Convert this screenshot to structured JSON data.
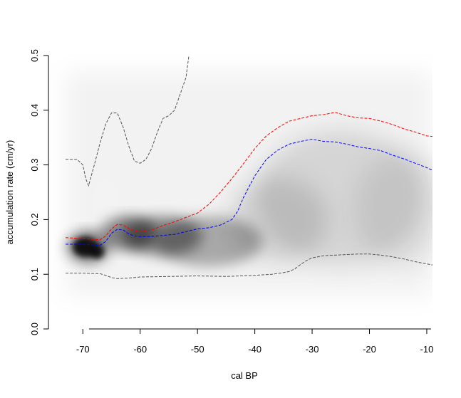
{
  "chart_data": {
    "type": "line",
    "title": "",
    "xlabel": "cal BP",
    "ylabel": "accumulation rate (cm/yr)",
    "xlim": [
      -76,
      -9
    ],
    "ylim": [
      0,
      0.5
    ],
    "x_ticks": [
      -70,
      -60,
      -50,
      -40,
      -30,
      -20,
      -10
    ],
    "x_tick_labels": [
      "-70",
      "-60",
      "-50",
      "-40",
      "-30",
      "-20",
      "-10"
    ],
    "y_ticks": [
      0,
      0.1,
      0.2,
      0.3,
      0.4,
      0.5
    ],
    "y_tick_labels": [
      "0.0",
      "0.1",
      "0.2",
      "0.3",
      "0.4",
      "0.5"
    ],
    "grid": false,
    "legend": "none",
    "background": "grey density shading (darkest near x -70 to -66, y 0.13 to 0.17)",
    "series": [
      {
        "color": "#ff0000",
        "dash": "dashed",
        "role": "mean",
        "x": [
          -73,
          -70,
          -67,
          -66,
          -65,
          -64,
          -63,
          -62,
          -61,
          -60,
          -58,
          -56,
          -54,
          -52,
          -50,
          -48,
          -46,
          -44,
          -42,
          -40,
          -38,
          -36,
          -34,
          -32,
          -30,
          -28,
          -26,
          -24,
          -22,
          -20,
          -18,
          -16,
          -14,
          -12,
          -10,
          -9
        ],
        "y": [
          0.167,
          0.165,
          0.163,
          0.17,
          0.183,
          0.191,
          0.19,
          0.184,
          0.179,
          0.178,
          0.181,
          0.189,
          0.196,
          0.204,
          0.212,
          0.228,
          0.25,
          0.275,
          0.302,
          0.33,
          0.353,
          0.368,
          0.38,
          0.385,
          0.39,
          0.392,
          0.396,
          0.39,
          0.386,
          0.385,
          0.38,
          0.374,
          0.366,
          0.36,
          0.353,
          0.352
        ]
      },
      {
        "color": "#0000ff",
        "dash": "dashed",
        "role": "median",
        "x": [
          -73,
          -70,
          -67,
          -66,
          -65,
          -64,
          -63,
          -62,
          -61,
          -60,
          -58,
          -56,
          -54,
          -52,
          -50,
          -48,
          -46,
          -44,
          -43,
          -42,
          -40,
          -38,
          -36,
          -34,
          -32,
          -30,
          -28,
          -26,
          -24,
          -22,
          -20,
          -18,
          -16,
          -14,
          -12,
          -10,
          -9
        ],
        "y": [
          0.155,
          0.155,
          0.153,
          0.16,
          0.175,
          0.182,
          0.181,
          0.174,
          0.17,
          0.169,
          0.169,
          0.171,
          0.173,
          0.178,
          0.183,
          0.185,
          0.19,
          0.2,
          0.215,
          0.24,
          0.28,
          0.31,
          0.327,
          0.338,
          0.343,
          0.347,
          0.343,
          0.342,
          0.338,
          0.333,
          0.33,
          0.326,
          0.318,
          0.311,
          0.303,
          0.295,
          0.29
        ]
      },
      {
        "color": "#555555",
        "dash": "dashed",
        "role": "upper bound",
        "x": [
          -73,
          -71,
          -70,
          -69.5,
          -69,
          -68,
          -67,
          -66,
          -65,
          -64,
          -63,
          -62,
          -61,
          -60,
          -59,
          -58,
          -57,
          -56,
          -55,
          -54,
          -53,
          -52,
          -51.5
        ],
        "y": [
          0.31,
          0.31,
          0.3,
          0.275,
          0.262,
          0.3,
          0.34,
          0.375,
          0.395,
          0.395,
          0.37,
          0.335,
          0.307,
          0.303,
          0.31,
          0.33,
          0.36,
          0.385,
          0.39,
          0.4,
          0.43,
          0.46,
          0.5
        ]
      },
      {
        "color": "#555555",
        "dash": "dashed",
        "role": "lower bound",
        "x": [
          -73,
          -70,
          -67,
          -66,
          -65,
          -64,
          -62,
          -60,
          -55,
          -50,
          -45,
          -40,
          -37,
          -35,
          -34,
          -33,
          -32,
          -31,
          -30,
          -28,
          -26,
          -24,
          -22,
          -20,
          -18,
          -16,
          -14,
          -12,
          -10,
          -9
        ],
        "y": [
          0.102,
          0.102,
          0.101,
          0.098,
          0.094,
          0.092,
          0.093,
          0.095,
          0.096,
          0.097,
          0.096,
          0.098,
          0.1,
          0.103,
          0.105,
          0.11,
          0.118,
          0.125,
          0.13,
          0.134,
          0.135,
          0.136,
          0.137,
          0.137,
          0.135,
          0.132,
          0.128,
          0.123,
          0.119,
          0.117
        ]
      }
    ]
  }
}
